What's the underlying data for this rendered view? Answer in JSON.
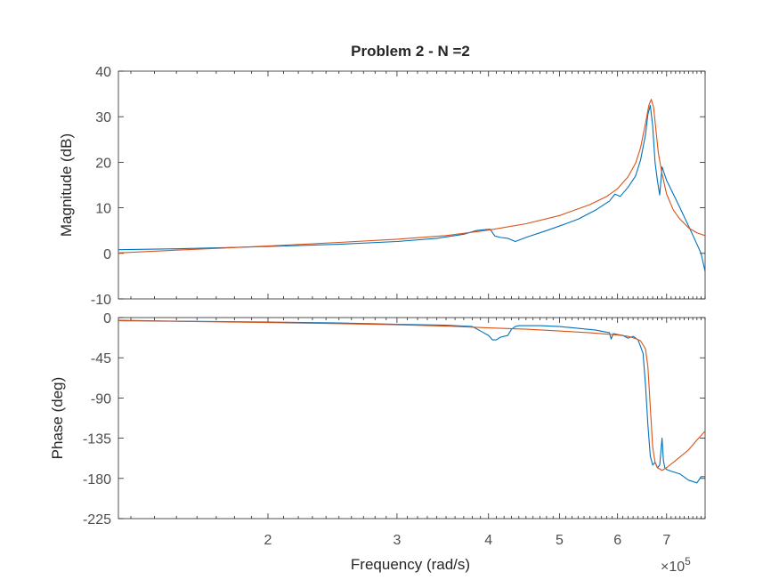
{
  "colors": {
    "measured": "#0072bd",
    "fit": "#d95319"
  },
  "chart_data": {
    "type": "line",
    "title": "Problem 2 - N =2",
    "xlabel": "Frequency  (rad/s)",
    "x_scale": "log",
    "x_multiplier_label": "×10",
    "x_multiplier_exp": "5",
    "xlim": [
      1.25,
      7.9
    ],
    "x_ticks": [
      2,
      3,
      4,
      5,
      6,
      7
    ],
    "x_tick_labels": [
      "2",
      "3",
      "4",
      "5",
      "6",
      "7"
    ],
    "grid": false,
    "legend": "none",
    "panels": [
      {
        "ylabel": "Magnitude (dB)",
        "ylim": [
          -10,
          40
        ],
        "y_ticks": [
          40,
          30,
          20,
          10,
          0,
          -10
        ],
        "y_tick_labels": [
          "40",
          "30",
          "20",
          "10",
          "0",
          "-10"
        ],
        "series": [
          {
            "color_key": "measured",
            "x": [
              1.25,
              1.5,
              2.0,
              2.5,
              3.0,
              3.4,
              3.7,
              3.85,
              3.95,
              4.02,
              4.08,
              4.15,
              4.25,
              4.35,
              4.5,
              4.8,
              5.0,
              5.3,
              5.6,
              5.85,
              5.95,
              6.05,
              6.2,
              6.35,
              6.45,
              6.55,
              6.6,
              6.65,
              6.7,
              6.75,
              6.8,
              6.85,
              6.9,
              6.95,
              7.0,
              7.05,
              7.1,
              7.2,
              7.3,
              7.4,
              7.5,
              7.6,
              7.7,
              7.8,
              7.9
            ],
            "y": [
              0.8,
              1.0,
              1.5,
              2.0,
              2.6,
              3.3,
              4.2,
              5.0,
              5.2,
              5.3,
              3.8,
              3.5,
              3.3,
              2.6,
              3.5,
              5.0,
              6.0,
              7.5,
              9.5,
              11.5,
              13.0,
              12.5,
              14.5,
              17.0,
              20.5,
              26.0,
              30.5,
              32.5,
              28.0,
              20.0,
              16.0,
              12.8,
              19.0,
              17.5,
              16.0,
              15.0,
              14.0,
              12.0,
              10.0,
              8.0,
              6.0,
              4.0,
              2.0,
              0.0,
              -4.0
            ]
          },
          {
            "color_key": "fit",
            "x": [
              1.25,
              1.5,
              2.0,
              2.5,
              3.0,
              3.5,
              4.0,
              4.5,
              5.0,
              5.5,
              5.8,
              6.0,
              6.2,
              6.35,
              6.45,
              6.55,
              6.62,
              6.67,
              6.72,
              6.77,
              6.82,
              6.9,
              7.0,
              7.15,
              7.3,
              7.5,
              7.7,
              7.9
            ],
            "y": [
              0.1,
              0.7,
              1.6,
              2.4,
              3.1,
              3.9,
              5.1,
              6.5,
              8.3,
              10.7,
              12.5,
              14.2,
              16.8,
              19.8,
              23.2,
              28.5,
              32.5,
              33.8,
              32.0,
              27.0,
              22.0,
              17.5,
              13.0,
              9.5,
              7.5,
              5.6,
              4.5,
              3.9
            ]
          }
        ]
      },
      {
        "ylabel": "Phase (deg)",
        "ylim": [
          -225,
          0
        ],
        "y_ticks": [
          0,
          -45,
          -90,
          -135,
          -180,
          -225
        ],
        "y_tick_labels": [
          "0",
          "-45",
          "-90",
          "-135",
          "-180",
          "-225"
        ],
        "series": [
          {
            "color_key": "measured",
            "x": [
              1.25,
              1.5,
              2.0,
              2.5,
              3.0,
              3.5,
              3.8,
              3.9,
              4.0,
              4.05,
              4.1,
              4.15,
              4.25,
              4.3,
              4.35,
              4.4,
              4.5,
              4.7,
              5.0,
              5.3,
              5.6,
              5.85,
              5.88,
              5.92,
              6.0,
              6.1,
              6.2,
              6.3,
              6.4,
              6.5,
              6.55,
              6.6,
              6.65,
              6.7,
              6.75,
              6.8,
              6.85,
              6.9,
              6.93,
              6.96,
              7.0,
              7.1,
              7.3,
              7.5,
              7.7,
              7.8,
              7.9
            ],
            "y": [
              -3,
              -4,
              -5,
              -6,
              -7.5,
              -8.5,
              -10,
              -15,
              -20,
              -25,
              -25,
              -22,
              -20,
              -13,
              -10,
              -9,
              -9,
              -9,
              -10,
              -12,
              -14,
              -17,
              -24,
              -18,
              -19,
              -20,
              -23,
              -21,
              -25,
              -40,
              -75,
              -120,
              -155,
              -165,
              -162,
              -168,
              -165,
              -135,
              -160,
              -168,
              -170,
              -172,
              -175,
              -182,
              -185,
              -178,
              -178
            ]
          },
          {
            "color_key": "fit",
            "x": [
              1.25,
              1.5,
              2.0,
              2.5,
              3.0,
              3.5,
              4.0,
              4.5,
              5.0,
              5.5,
              5.8,
              6.0,
              6.2,
              6.35,
              6.45,
              6.55,
              6.6,
              6.65,
              6.7,
              6.75,
              6.8,
              6.9,
              7.0,
              7.15,
              7.3,
              7.5,
              7.7,
              7.9
            ],
            "y": [
              -3.5,
              -4.2,
              -5.5,
              -6.8,
              -8,
              -9.5,
              -11.5,
              -13,
              -15,
              -17,
              -18.5,
              -19.5,
              -21,
              -23.5,
              -26,
              -35,
              -55,
              -100,
              -145,
              -162,
              -168,
              -171,
              -168,
              -162,
              -156,
              -148,
              -137,
              -127
            ]
          }
        ]
      }
    ]
  }
}
